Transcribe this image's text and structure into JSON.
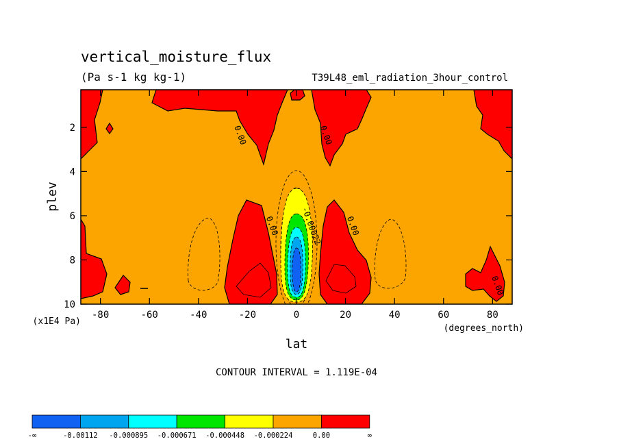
{
  "chart_data": {
    "type": "contour",
    "title": "vertical_moisture_flux",
    "units": "(Pa s-1 kg kg-1)",
    "run_label": "T39L48_eml_radiation_3hour_control",
    "xlabel": "lat",
    "x_units": "(degrees_north)",
    "ylabel": "plev",
    "y_units": "(x1E4 Pa)",
    "xlim": [
      -88,
      88
    ],
    "ylim": [
      10,
      0.3
    ],
    "x_ticks": [
      -80,
      -60,
      -40,
      -20,
      0,
      20,
      40,
      60,
      80
    ],
    "x_tick_labels": [
      "-80",
      "-60",
      "-40",
      "-20",
      "0",
      "20",
      "40",
      "60",
      "80"
    ],
    "y_ticks": [
      2,
      4,
      6,
      8,
      10
    ],
    "y_tick_labels": [
      "2",
      "4",
      "6",
      "8",
      "10"
    ],
    "contour_interval_text": "CONTOUR INTERVAL = 1.119E-04",
    "contour_labels": [
      {
        "text": "0.00",
        "lat": -24,
        "plev": 2.4
      },
      {
        "text": "0.00",
        "lat": 11,
        "plev": 2.4
      },
      {
        "text": "0.00",
        "lat": -11,
        "plev": 6.5
      },
      {
        "text": "0.00",
        "lat": 22,
        "plev": 6.5
      },
      {
        "text": "-0.00022",
        "lat": 5,
        "plev": 6.5
      },
      {
        "text": "0.00",
        "lat": 81,
        "plev": 9.2
      }
    ],
    "colorbar": {
      "colors": [
        "#0f62f2",
        "#00a5f0",
        "#00ffff",
        "#00e600",
        "#ffff00",
        "#fca500",
        "#fe0000"
      ],
      "labels": [
        "-∞",
        "-0.00112",
        "-0.000895",
        "-0.000671",
        "-0.000448",
        "-0.000224",
        "0.00",
        "∞"
      ]
    },
    "colors": {
      "background_field": "#fca500",
      "positive": "#fe0000",
      "weak_negative": "#ffff00",
      "mid_negative": "#00e600",
      "strong_negative": "#00ffff",
      "stronger_negative": "#00a5f0",
      "strongest_negative": "#0f62f2"
    }
  }
}
